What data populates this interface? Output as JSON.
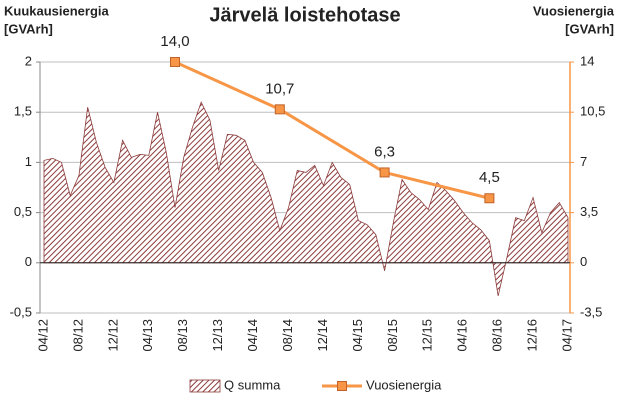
{
  "chart_data": {
    "type": "area_line",
    "title": "Järvelä loistehotase",
    "ylabel": [
      "Kuukausienergia",
      "[GVArh]"
    ],
    "y2label": [
      "Vuosienergia",
      "[GVArh]"
    ],
    "categories": [
      "04/12",
      null,
      null,
      null,
      "08/12",
      null,
      null,
      null,
      "12/12",
      null,
      null,
      null,
      "04/13",
      null,
      null,
      null,
      "08/13",
      null,
      null,
      null,
      "12/13",
      null,
      null,
      null,
      "04/14",
      null,
      null,
      null,
      "08/14",
      null,
      null,
      null,
      "12/14",
      null,
      null,
      null,
      "04/15",
      null,
      null,
      null,
      "08/15",
      null,
      null,
      null,
      "12/15",
      null,
      null,
      null,
      "04/16",
      null,
      null,
      null,
      "08/16",
      null,
      null,
      null,
      "12/16",
      null,
      null,
      null,
      "04/17"
    ],
    "ylim": [
      -0.5,
      2
    ],
    "yticks": [
      {
        "value": -0.5,
        "label": "-0,5"
      },
      0,
      {
        "value": 0.5,
        "label": "0,5"
      },
      1,
      {
        "value": 1.5,
        "label": "1,5"
      },
      2
    ],
    "y2lim": [
      -3.5,
      14
    ],
    "y2ticks": [
      {
        "value": -3.5,
        "label": "-3,5"
      },
      0,
      {
        "value": 3.5,
        "label": "3,5"
      },
      7,
      {
        "value": 10.5,
        "label": "10,5"
      },
      14
    ],
    "grid": true,
    "series": [
      {
        "name": "Q summa",
        "kind": "area",
        "color": "#8c3b3b",
        "values": [
          1.02,
          1.04,
          1.0,
          0.67,
          0.87,
          1.55,
          1.2,
          0.95,
          0.8,
          1.22,
          1.05,
          1.08,
          1.07,
          1.5,
          1.1,
          0.55,
          1.05,
          1.35,
          1.6,
          1.42,
          0.92,
          1.28,
          1.27,
          1.22,
          1.0,
          0.9,
          0.65,
          0.32,
          0.55,
          0.92,
          0.9,
          0.97,
          0.77,
          1.0,
          0.85,
          0.78,
          0.42,
          0.38,
          0.28,
          -0.08,
          0.4,
          0.83,
          0.7,
          0.63,
          0.53,
          0.8,
          0.72,
          0.62,
          0.5,
          0.4,
          0.33,
          0.22,
          -0.33,
          0.05,
          0.45,
          0.42,
          0.65,
          0.3,
          0.5,
          0.6,
          0.45
        ]
      },
      {
        "name": "Vuosienergia",
        "kind": "line",
        "axis": "y2",
        "color": "#f79646",
        "values": [
          null,
          null,
          null,
          null,
          null,
          null,
          null,
          null,
          null,
          null,
          null,
          null,
          null,
          null,
          null,
          14.0,
          null,
          null,
          null,
          null,
          null,
          null,
          null,
          null,
          null,
          null,
          null,
          10.7,
          null,
          null,
          null,
          null,
          null,
          null,
          null,
          null,
          null,
          null,
          null,
          6.3,
          null,
          null,
          null,
          null,
          null,
          null,
          null,
          null,
          null,
          null,
          null,
          4.5,
          null,
          null,
          null,
          null,
          null,
          null,
          null,
          null,
          null
        ],
        "value_labels": [
          null,
          null,
          null,
          null,
          null,
          null,
          null,
          null,
          null,
          null,
          null,
          null,
          null,
          null,
          null,
          "14,0",
          null,
          null,
          null,
          null,
          null,
          null,
          null,
          null,
          null,
          null,
          null,
          "10,7",
          null,
          null,
          null,
          null,
          null,
          null,
          null,
          null,
          null,
          null,
          null,
          "6,3",
          null,
          null,
          null,
          null,
          null,
          null,
          null,
          null,
          null,
          null,
          null,
          "4,5",
          null,
          null,
          null,
          null,
          null,
          null,
          null,
          null,
          null
        ]
      }
    ]
  }
}
